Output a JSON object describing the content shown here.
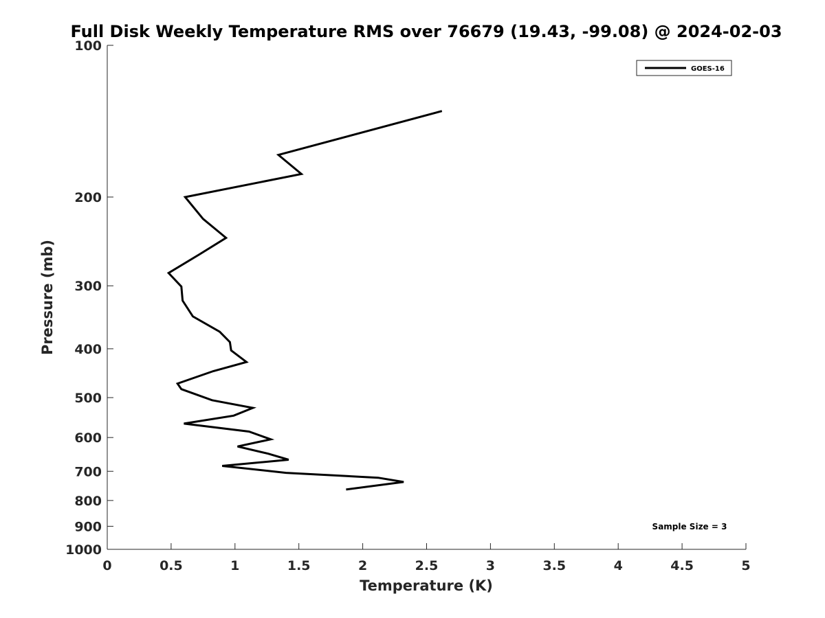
{
  "chart_data": {
    "type": "line",
    "title": "Full Disk Weekly Temperature RMS over 76679 (19.43, -99.08) @ 2024-02-03",
    "xlabel": "Temperature (K)",
    "ylabel": "Pressure (mb)",
    "xlim": [
      0,
      5
    ],
    "ylim": [
      1000,
      100
    ],
    "yscale": "log",
    "y_reversed": true,
    "x_ticks": [
      0,
      0.5,
      1,
      1.5,
      2,
      2.5,
      3,
      3.5,
      4,
      4.5,
      5
    ],
    "x_tick_labels": [
      "0",
      "0.5",
      "1",
      "1.5",
      "2",
      "2.5",
      "3",
      "3.5",
      "4",
      "4.5",
      "5"
    ],
    "y_ticks": [
      100,
      200,
      300,
      400,
      500,
      600,
      700,
      800,
      900,
      1000
    ],
    "y_tick_labels": [
      "100",
      "200",
      "300",
      "400",
      "500",
      "600",
      "700",
      "800",
      "900",
      "1000"
    ],
    "grid": false,
    "legend_position": "top-right",
    "series": [
      {
        "name": "GOES-16",
        "color": "#000000",
        "points": [
          {
            "x": 2.62,
            "y": 135
          },
          {
            "x": 1.34,
            "y": 165
          },
          {
            "x": 1.52,
            "y": 180
          },
          {
            "x": 0.61,
            "y": 200
          },
          {
            "x": 0.75,
            "y": 221
          },
          {
            "x": 0.93,
            "y": 241
          },
          {
            "x": 0.72,
            "y": 260
          },
          {
            "x": 0.48,
            "y": 283
          },
          {
            "x": 0.58,
            "y": 301
          },
          {
            "x": 0.59,
            "y": 321
          },
          {
            "x": 0.67,
            "y": 345
          },
          {
            "x": 0.88,
            "y": 370
          },
          {
            "x": 0.96,
            "y": 388
          },
          {
            "x": 0.97,
            "y": 403
          },
          {
            "x": 1.09,
            "y": 425
          },
          {
            "x": 0.83,
            "y": 443
          },
          {
            "x": 0.55,
            "y": 469
          },
          {
            "x": 0.58,
            "y": 481
          },
          {
            "x": 0.82,
            "y": 506
          },
          {
            "x": 1.14,
            "y": 524
          },
          {
            "x": 0.99,
            "y": 543
          },
          {
            "x": 0.6,
            "y": 563
          },
          {
            "x": 1.11,
            "y": 584
          },
          {
            "x": 1.28,
            "y": 605
          },
          {
            "x": 1.02,
            "y": 625
          },
          {
            "x": 1.26,
            "y": 646
          },
          {
            "x": 1.42,
            "y": 664
          },
          {
            "x": 0.9,
            "y": 683
          },
          {
            "x": 1.4,
            "y": 705
          },
          {
            "x": 2.12,
            "y": 721
          },
          {
            "x": 2.32,
            "y": 735
          },
          {
            "x": 1.87,
            "y": 761
          }
        ]
      }
    ],
    "annotations": [
      "Sample Size = 3"
    ]
  }
}
